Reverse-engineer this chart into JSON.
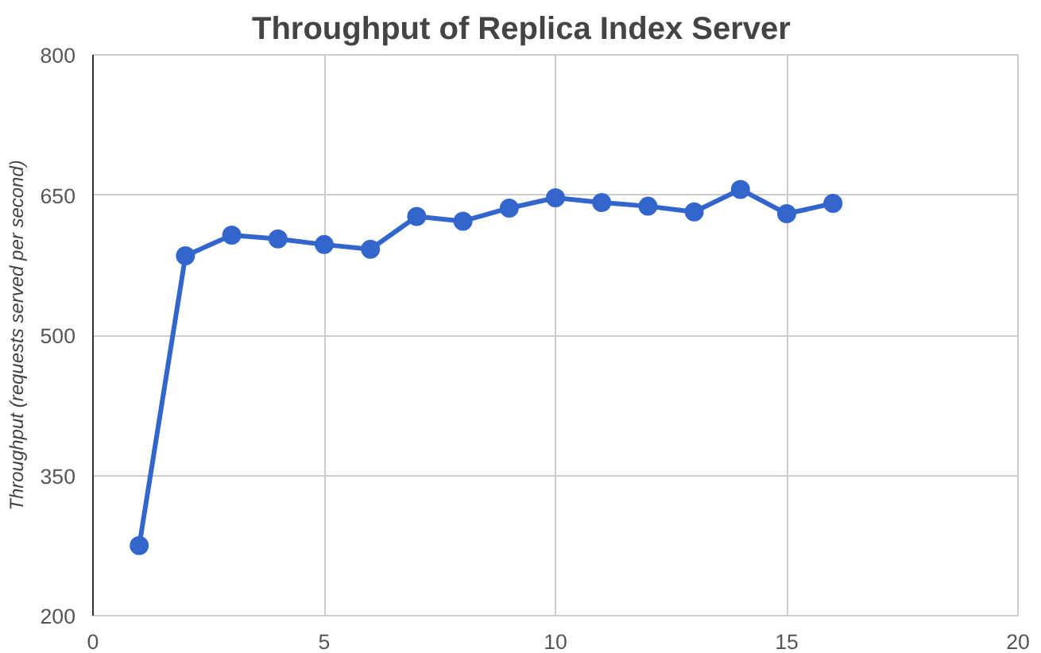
{
  "chart_data": {
    "type": "line",
    "title": "Throughput of Replica Index Server",
    "ylabel": "Throughput (requests served per second)",
    "x": [
      1,
      2,
      3,
      4,
      5,
      6,
      7,
      8,
      9,
      10,
      11,
      12,
      13,
      14,
      15,
      16
    ],
    "series": [
      {
        "color": "#3366cc",
        "values": [
          275,
          585,
          607,
          603,
          597,
          592,
          627,
          622,
          636,
          647,
          642,
          638,
          632,
          656,
          630,
          641
        ]
      }
    ],
    "xlim": [
      0,
      20
    ],
    "xticks": [
      0,
      5,
      10,
      15,
      20
    ],
    "ylim": [
      200,
      800
    ],
    "yticks": [
      200,
      350,
      500,
      650,
      800
    ],
    "grid": true,
    "marker": "circle",
    "line_style": "solid"
  }
}
